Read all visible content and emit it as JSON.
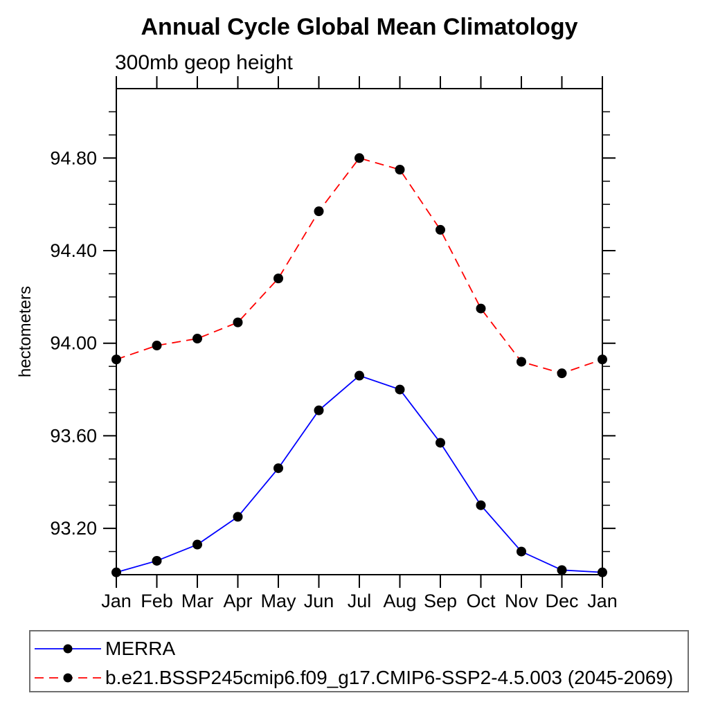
{
  "page": {
    "background_color": "#ffffff",
    "text_color": "#000000"
  },
  "chart_data": {
    "type": "line",
    "title": "Annual Cycle Global Mean Climatology",
    "subtitle": "300mb geop height",
    "xlabel": "",
    "ylabel": "hectometers",
    "categories": [
      "Jan",
      "Feb",
      "Mar",
      "Apr",
      "May",
      "Jun",
      "Jul",
      "Aug",
      "Sep",
      "Oct",
      "Nov",
      "Dec",
      "Jan"
    ],
    "ylim": [
      93.0,
      95.1
    ],
    "ytick_major": {
      "values": [
        93.2,
        93.6,
        94.0,
        94.4,
        94.8
      ],
      "labels": [
        "93.20",
        "93.60",
        "94.00",
        "94.40",
        "94.80"
      ]
    },
    "ytick_minor_step": 0.1,
    "grid": false,
    "axis_color": "#000000",
    "marker": {
      "shape": "circle",
      "color": "#000000"
    },
    "legend_position": "bottom-box",
    "legend_border_color": "#6e6e6e",
    "series": [
      {
        "name": "MERRA",
        "color": "#0000ff",
        "line_style": "solid",
        "values": [
          93.01,
          93.06,
          93.13,
          93.25,
          93.46,
          93.71,
          93.86,
          93.8,
          93.57,
          93.3,
          93.1,
          93.02,
          93.01
        ]
      },
      {
        "name": "b.e21.BSSP245cmip6.f09_g17.CMIP6-SSP2-4.5.003 (2045-2069)",
        "color": "#ff0000",
        "line_style": "dashed",
        "values": [
          93.93,
          93.99,
          94.02,
          94.09,
          94.28,
          94.57,
          94.8,
          94.75,
          94.49,
          94.15,
          93.92,
          93.87,
          93.93
        ]
      }
    ]
  }
}
